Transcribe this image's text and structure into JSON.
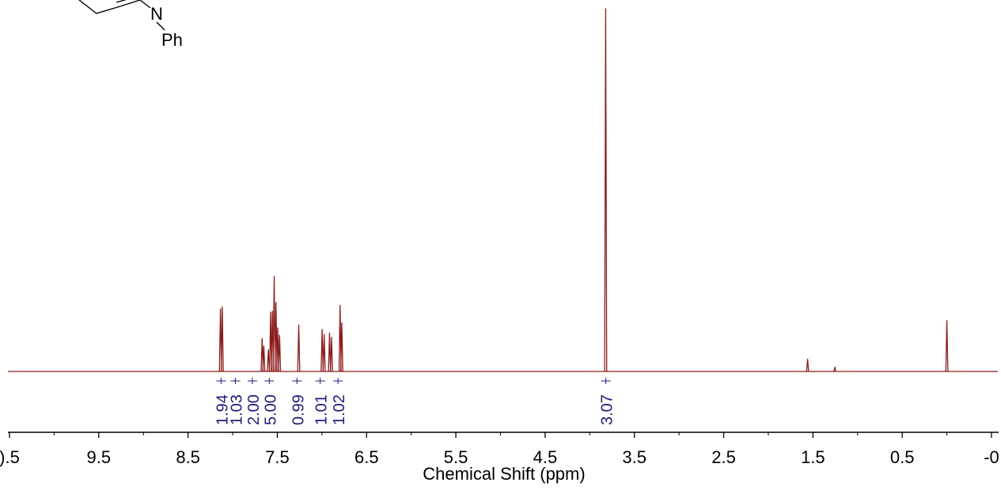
{
  "molecule": {
    "atom_label": "N",
    "substituent_label": "Ph"
  },
  "chart_data": {
    "type": "line",
    "xlabel": "Chemical Shift (ppm)",
    "ylabel": "",
    "title": "",
    "x_reversed": true,
    "xlim": [
      10.5,
      -0.5
    ],
    "tick_labels": [
      {
        "x": 10.5,
        "label": ").5"
      },
      {
        "x": 9.5,
        "label": "9.5"
      },
      {
        "x": 8.5,
        "label": "8.5"
      },
      {
        "x": 7.5,
        "label": "7.5"
      },
      {
        "x": 6.5,
        "label": "6.5"
      },
      {
        "x": 5.5,
        "label": "5.5"
      },
      {
        "x": 4.5,
        "label": "4.5"
      },
      {
        "x": 3.5,
        "label": "3.5"
      },
      {
        "x": 2.5,
        "label": "2.5"
      },
      {
        "x": 1.5,
        "label": "1.5"
      },
      {
        "x": 0.5,
        "label": "0.5"
      },
      {
        "x": -0.5,
        "label": "-0"
      }
    ],
    "minor_tick_step": 0.5,
    "peaks": [
      {
        "ppm": 8.137,
        "height": 0.172
      },
      {
        "ppm": 8.117,
        "height": 0.178
      },
      {
        "ppm": 7.67,
        "height": 0.091
      },
      {
        "ppm": 7.651,
        "height": 0.07
      },
      {
        "ppm": 7.6,
        "height": 0.06
      },
      {
        "ppm": 7.575,
        "height": 0.163
      },
      {
        "ppm": 7.555,
        "height": 0.166
      },
      {
        "ppm": 7.535,
        "height": 0.262
      },
      {
        "ppm": 7.515,
        "height": 0.19
      },
      {
        "ppm": 7.495,
        "height": 0.12
      },
      {
        "ppm": 7.475,
        "height": 0.1
      },
      {
        "ppm": 7.26,
        "height": 0.128
      },
      {
        "ppm": 6.998,
        "height": 0.116
      },
      {
        "ppm": 6.975,
        "height": 0.102
      },
      {
        "ppm": 6.915,
        "height": 0.106
      },
      {
        "ppm": 6.893,
        "height": 0.094
      },
      {
        "ppm": 6.797,
        "height": 0.182
      },
      {
        "ppm": 6.778,
        "height": 0.134
      },
      {
        "ppm": 3.822,
        "height": 1.0
      },
      {
        "ppm": 1.56,
        "height": 0.034
      },
      {
        "ppm": 1.255,
        "height": 0.012
      },
      {
        "ppm": 0.0,
        "height": 0.14
      }
    ],
    "integrals": [
      {
        "ppm": 8.13,
        "label": "1.94"
      },
      {
        "ppm": 7.97,
        "label": "1.03"
      },
      {
        "ppm": 7.78,
        "label": "2.00"
      },
      {
        "ppm": 7.59,
        "label": "5.00"
      },
      {
        "ppm": 7.28,
        "label": "0.99"
      },
      {
        "ppm": 7.02,
        "label": "1.01"
      },
      {
        "ppm": 6.82,
        "label": "1.02"
      },
      {
        "ppm": 3.82,
        "label": "3.07"
      }
    ],
    "colors": {
      "spectrum": "#8b1a1a",
      "integral": "#1c1c78",
      "axis": "#000000"
    }
  }
}
